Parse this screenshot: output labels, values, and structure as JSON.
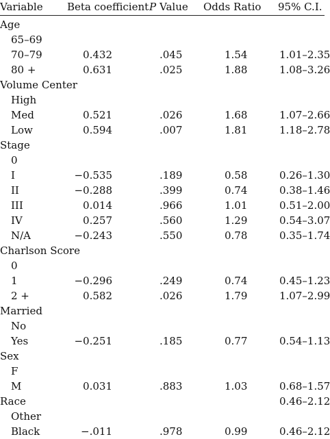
{
  "table": {
    "headers": {
      "variable": "Variable",
      "beta": "Beta coefficient",
      "p_italic": "P",
      "p_rest": " Value",
      "odds": "Odds Ratio",
      "ci": "95% C.I."
    },
    "rows": [
      {
        "label": "Age",
        "indent": false,
        "beta": "",
        "p": "",
        "or": "",
        "ci": ""
      },
      {
        "label": "65–69",
        "indent": true,
        "beta": "",
        "p": "",
        "or": "",
        "ci": ""
      },
      {
        "label": "70–79",
        "indent": true,
        "beta": "0.432",
        "p": ".045",
        "or": "1.54",
        "ci": "1.01–2.35"
      },
      {
        "label": "80 +",
        "indent": true,
        "beta": "0.631",
        "p": ".025",
        "or": "1.88",
        "ci": "1.08–3.26"
      },
      {
        "label": "Volume Center",
        "indent": false,
        "beta": "",
        "p": "",
        "or": "",
        "ci": ""
      },
      {
        "label": "High",
        "indent": true,
        "beta": "",
        "p": "",
        "or": "",
        "ci": ""
      },
      {
        "label": "Med",
        "indent": true,
        "beta": "0.521",
        "p": ".026",
        "or": "1.68",
        "ci": "1.07–2.66"
      },
      {
        "label": "Low",
        "indent": true,
        "beta": "0.594",
        "p": ".007",
        "or": "1.81",
        "ci": "1.18–2.78"
      },
      {
        "label": "Stage",
        "indent": false,
        "beta": "",
        "p": "",
        "or": "",
        "ci": ""
      },
      {
        "label": "0",
        "indent": true,
        "beta": "",
        "p": "",
        "or": "",
        "ci": ""
      },
      {
        "label": "I",
        "indent": true,
        "beta": "−0.535",
        "p": ".189",
        "or": "0.58",
        "ci": "0.26–1.30"
      },
      {
        "label": "II",
        "indent": true,
        "beta": "−0.288",
        "p": ".399",
        "or": "0.74",
        "ci": "0.38–1.46"
      },
      {
        "label": "III",
        "indent": true,
        "beta": "0.014",
        "p": ".966",
        "or": "1.01",
        "ci": "0.51–2.00"
      },
      {
        "label": "IV",
        "indent": true,
        "beta": "0.257",
        "p": ".560",
        "or": "1.29",
        "ci": "0.54–3.07"
      },
      {
        "label": "N/A",
        "indent": true,
        "beta": "−0.243",
        "p": ".550",
        "or": "0.78",
        "ci": "0.35–1.74"
      },
      {
        "label": "Charlson Score",
        "indent": false,
        "beta": "",
        "p": "",
        "or": "",
        "ci": ""
      },
      {
        "label": "0",
        "indent": true,
        "beta": "",
        "p": "",
        "or": "",
        "ci": ""
      },
      {
        "label": "1",
        "indent": true,
        "beta": "−0.296",
        "p": ".249",
        "or": "0.74",
        "ci": "0.45–1.23"
      },
      {
        "label": "2 +",
        "indent": true,
        "beta": "0.582",
        "p": ".026",
        "or": "1.79",
        "ci": "1.07–2.99"
      },
      {
        "label": "Married",
        "indent": false,
        "beta": "",
        "p": "",
        "or": "",
        "ci": ""
      },
      {
        "label": "No",
        "indent": true,
        "beta": "",
        "p": "",
        "or": "",
        "ci": ""
      },
      {
        "label": "Yes",
        "indent": true,
        "beta": "−0.251",
        "p": ".185",
        "or": "0.77",
        "ci": "0.54–1.13"
      },
      {
        "label": "Sex",
        "indent": false,
        "beta": "",
        "p": "",
        "or": "",
        "ci": ""
      },
      {
        "label": "F",
        "indent": true,
        "beta": "",
        "p": "",
        "or": "",
        "ci": ""
      },
      {
        "label": "M",
        "indent": true,
        "beta": "0.031",
        "p": ".883",
        "or": "1.03",
        "ci": "0.68–1.57"
      },
      {
        "label": "Race",
        "indent": false,
        "beta": "",
        "p": "",
        "or": "",
        "ci": "0.46–2.12"
      },
      {
        "label": "Other",
        "indent": true,
        "beta": "",
        "p": "",
        "or": "",
        "ci": ""
      },
      {
        "label": "Black",
        "indent": true,
        "beta": "−.011",
        "p": ".978",
        "or": "0.99",
        "ci": "0.46–2.12"
      }
    ]
  }
}
